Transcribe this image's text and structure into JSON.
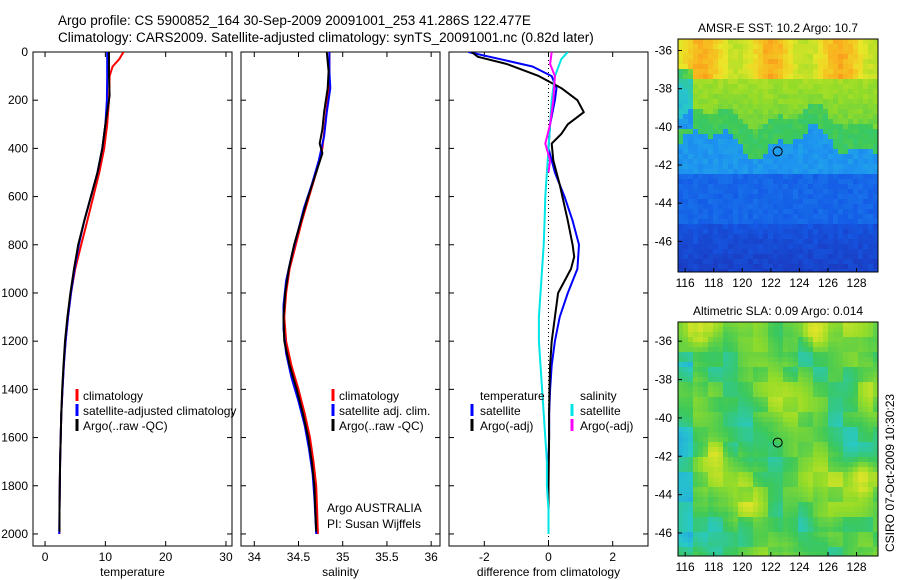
{
  "header": {
    "line1": "Argo profile: CS 5900852_164 30-Sep-2009 20091001_253 41.286S 122.477E",
    "line2": "Climatology: CARS2009. Satellite-adjusted climatology: synTS_20091001.nc (0.82d later)"
  },
  "stamp": "CSIRO 07-Oct-2009 10:30:23",
  "colors": {
    "climatology": "#ff0000",
    "satellite": "#0000ff",
    "argo": "#000000",
    "satellite_salinity": "#00e5e5",
    "argo_salinity": "#ff00ff"
  },
  "chart_data": [
    {
      "type": "line",
      "id": "temperature",
      "title": "",
      "xlabel": "temperature",
      "ylabel": "",
      "xlim": [
        -2,
        31
      ],
      "ylim": [
        2050,
        0
      ],
      "y_reversed": true,
      "xticks": [
        0,
        10,
        20,
        30
      ],
      "yticks": [
        0,
        200,
        400,
        600,
        800,
        1000,
        1200,
        1400,
        1600,
        1800,
        2000
      ],
      "legend": {
        "placement": "lower-right",
        "entries": [
          {
            "label": "climatology",
            "color": "#ff0000"
          },
          {
            "label": "satellite-adjusted climatology",
            "color": "#0000ff"
          },
          {
            "label": "Argo(..raw -QC)",
            "color": "#000000"
          }
        ]
      },
      "series": [
        {
          "color": "#ff0000",
          "points": [
            [
              13,
              0
            ],
            [
              12.3,
              30
            ],
            [
              11.2,
              60
            ],
            [
              10.7,
              100
            ],
            [
              10.6,
              200
            ],
            [
              10.3,
              300
            ],
            [
              9.8,
              400
            ],
            [
              9,
              500
            ],
            [
              8,
              600
            ],
            [
              7,
              700
            ],
            [
              6,
              800
            ],
            [
              5,
              900
            ],
            [
              4.3,
              1000
            ],
            [
              3.8,
              1100
            ],
            [
              3.4,
              1200
            ],
            [
              3.1,
              1300
            ],
            [
              2.9,
              1400
            ],
            [
              2.7,
              1500
            ],
            [
              2.6,
              1600
            ],
            [
              2.5,
              1700
            ],
            [
              2.45,
              1800
            ],
            [
              2.4,
              1900
            ],
            [
              2.4,
              2000
            ]
          ]
        },
        {
          "color": "#0000ff",
          "points": [
            [
              10.3,
              0
            ],
            [
              10.3,
              100
            ],
            [
              10.25,
              200
            ],
            [
              10,
              300
            ],
            [
              9.5,
              400
            ],
            [
              8.7,
              500
            ],
            [
              7.6,
              600
            ],
            [
              6.5,
              700
            ],
            [
              5.6,
              800
            ],
            [
              4.9,
              900
            ],
            [
              4.3,
              1000
            ],
            [
              3.8,
              1100
            ],
            [
              3.4,
              1200
            ],
            [
              3.1,
              1300
            ],
            [
              2.9,
              1400
            ],
            [
              2.7,
              1500
            ],
            [
              2.6,
              1600
            ],
            [
              2.5,
              1700
            ],
            [
              2.45,
              1800
            ],
            [
              2.4,
              1900
            ],
            [
              2.35,
              2000
            ]
          ]
        },
        {
          "color": "#000000",
          "points": [
            [
              10.6,
              0
            ],
            [
              10.6,
              100
            ],
            [
              10.7,
              180
            ],
            [
              10.3,
              250
            ],
            [
              10,
              300
            ],
            [
              9.5,
              400
            ],
            [
              8.7,
              500
            ],
            [
              7.6,
              600
            ],
            [
              6.5,
              700
            ],
            [
              5.5,
              800
            ],
            [
              4.8,
              900
            ],
            [
              4.2,
              1000
            ],
            [
              3.7,
              1100
            ],
            [
              3.3,
              1200
            ],
            [
              3.05,
              1300
            ],
            [
              2.85,
              1400
            ],
            [
              2.7,
              1500
            ],
            [
              2.6,
              1600
            ],
            [
              2.5,
              1700
            ],
            [
              2.45,
              1800
            ],
            [
              2.4,
              1900
            ],
            [
              2.4,
              1990
            ]
          ]
        }
      ]
    },
    {
      "type": "line",
      "id": "salinity",
      "title": "",
      "xlabel": "salinity",
      "ylabel": "",
      "xlim": [
        33.85,
        36.1
      ],
      "ylim": [
        2050,
        0
      ],
      "y_reversed": true,
      "xticks": [
        34,
        34.5,
        35,
        35.5,
        36
      ],
      "legend": {
        "placement": "lower-right",
        "entries": [
          {
            "label": "climatology",
            "color": "#ff0000"
          },
          {
            "label": "satellite adj. clim.",
            "color": "#0000ff"
          },
          {
            "label": "Argo(..raw -QC)",
            "color": "#000000"
          }
        ]
      },
      "annotation": [
        "Argo AUSTRALIA",
        "PI: Susan Wijffels"
      ],
      "series": [
        {
          "color": "#ff0000",
          "points": [
            [
              34.85,
              0
            ],
            [
              34.85,
              100
            ],
            [
              34.83,
              200
            ],
            [
              34.8,
              300
            ],
            [
              34.77,
              400
            ],
            [
              34.7,
              500
            ],
            [
              34.62,
              600
            ],
            [
              34.54,
              700
            ],
            [
              34.47,
              800
            ],
            [
              34.4,
              900
            ],
            [
              34.36,
              1000
            ],
            [
              34.34,
              1100
            ],
            [
              34.36,
              1200
            ],
            [
              34.42,
              1300
            ],
            [
              34.5,
              1400
            ],
            [
              34.57,
              1500
            ],
            [
              34.63,
              1600
            ],
            [
              34.67,
              1700
            ],
            [
              34.7,
              1800
            ],
            [
              34.71,
              1900
            ],
            [
              34.72,
              2000
            ]
          ]
        },
        {
          "color": "#0000ff",
          "points": [
            [
              34.85,
              0
            ],
            [
              34.85,
              80
            ],
            [
              34.86,
              150
            ],
            [
              34.82,
              250
            ],
            [
              34.79,
              350
            ],
            [
              34.73,
              450
            ],
            [
              34.65,
              550
            ],
            [
              34.56,
              650
            ],
            [
              34.49,
              750
            ],
            [
              34.42,
              850
            ],
            [
              34.36,
              950
            ],
            [
              34.33,
              1050
            ],
            [
              34.33,
              1150
            ],
            [
              34.36,
              1250
            ],
            [
              34.42,
              1350
            ],
            [
              34.5,
              1450
            ],
            [
              34.57,
              1550
            ],
            [
              34.62,
              1650
            ],
            [
              34.66,
              1750
            ],
            [
              34.68,
              1850
            ],
            [
              34.7,
              2000
            ]
          ]
        },
        {
          "color": "#000000",
          "points": [
            [
              34.82,
              0
            ],
            [
              34.84,
              80
            ],
            [
              34.83,
              150
            ],
            [
              34.79,
              250
            ],
            [
              34.77,
              320
            ],
            [
              34.74,
              380
            ],
            [
              34.77,
              420
            ],
            [
              34.7,
              500
            ],
            [
              34.61,
              600
            ],
            [
              34.53,
              700
            ],
            [
              34.45,
              800
            ],
            [
              34.39,
              900
            ],
            [
              34.35,
              1000
            ],
            [
              34.33,
              1100
            ],
            [
              34.34,
              1200
            ],
            [
              34.4,
              1300
            ],
            [
              34.48,
              1400
            ],
            [
              34.55,
              1500
            ],
            [
              34.61,
              1600
            ],
            [
              34.65,
              1700
            ],
            [
              34.68,
              1800
            ],
            [
              34.69,
              1900
            ],
            [
              34.7,
              1990
            ]
          ]
        }
      ]
    },
    {
      "type": "line",
      "id": "difference",
      "title": "",
      "xlabel": "difference from climatology",
      "ylabel": "",
      "xlim": [
        -3.1,
        3.1
      ],
      "ylim": [
        2050,
        0
      ],
      "y_reversed": true,
      "xticks": [
        -2,
        0,
        2
      ],
      "zero_line": true,
      "legend": {
        "placement": "lower-center",
        "groups": [
          {
            "heading": "temperature",
            "entries": [
              {
                "label": "satellite",
                "color": "#0000ff"
              },
              {
                "label": "Argo(-adj)",
                "color": "#000000"
              }
            ]
          },
          {
            "heading": "salinity",
            "entries": [
              {
                "label": "satellite",
                "color": "#00e5e5"
              },
              {
                "label": "Argo(-adj)",
                "color": "#ff00ff"
              }
            ]
          }
        ]
      },
      "series": [
        {
          "name": "temperature satellite",
          "color": "#0000ff",
          "points": [
            [
              -2.5,
              0
            ],
            [
              -1.5,
              30
            ],
            [
              -0.5,
              60
            ],
            [
              0.1,
              100
            ],
            [
              0.25,
              150
            ],
            [
              0.2,
              200
            ],
            [
              0.05,
              300
            ],
            [
              0,
              400
            ],
            [
              0.2,
              500
            ],
            [
              0.5,
              600
            ],
            [
              0.75,
              700
            ],
            [
              0.95,
              800
            ],
            [
              0.9,
              900
            ],
            [
              0.6,
              1000
            ],
            [
              0.35,
              1100
            ],
            [
              0.2,
              1200
            ],
            [
              0.1,
              1300
            ],
            [
              0.05,
              1400
            ],
            [
              0.02,
              1500
            ],
            [
              0.02,
              1600
            ],
            [
              0,
              1700
            ],
            [
              0,
              1800
            ],
            [
              0,
              1900
            ],
            [
              0,
              2000
            ]
          ]
        },
        {
          "name": "temperature Argo(-adj)",
          "color": "#000000",
          "points": [
            [
              -2.4,
              0
            ],
            [
              -2.2,
              20
            ],
            [
              -1.3,
              50
            ],
            [
              -0.3,
              100
            ],
            [
              0.4,
              150
            ],
            [
              0.9,
              200
            ],
            [
              1.1,
              250
            ],
            [
              0.6,
              300
            ],
            [
              0.4,
              340
            ],
            [
              0.1,
              380
            ],
            [
              0.15,
              450
            ],
            [
              0.35,
              550
            ],
            [
              0.6,
              700
            ],
            [
              0.75,
              800
            ],
            [
              0.8,
              850
            ],
            [
              0.7,
              900
            ],
            [
              0.3,
              1000
            ],
            [
              0.2,
              1100
            ],
            [
              0.1,
              1200
            ],
            [
              0.05,
              1300
            ],
            [
              0.03,
              1400
            ],
            [
              0.02,
              1500
            ],
            [
              0.02,
              1600
            ],
            [
              0.01,
              1700
            ],
            [
              0,
              1800
            ],
            [
              0,
              1900
            ],
            [
              0,
              2000
            ]
          ]
        },
        {
          "name": "salinity satellite",
          "color": "#00e5e5",
          "points": [
            [
              0.6,
              0
            ],
            [
              0.4,
              30
            ],
            [
              0.2,
              100
            ],
            [
              0.1,
              200
            ],
            [
              0.05,
              300
            ],
            [
              0,
              400
            ],
            [
              -0.05,
              500
            ],
            [
              -0.1,
              600
            ],
            [
              -0.12,
              700
            ],
            [
              -0.15,
              800
            ],
            [
              -0.2,
              900
            ],
            [
              -0.25,
              1000
            ],
            [
              -0.3,
              1100
            ],
            [
              -0.3,
              1200
            ],
            [
              -0.25,
              1300
            ],
            [
              -0.2,
              1400
            ],
            [
              -0.15,
              1500
            ],
            [
              -0.1,
              1600
            ],
            [
              -0.05,
              1700
            ],
            [
              -0.05,
              1800
            ],
            [
              0,
              1900
            ],
            [
              0,
              2000
            ]
          ]
        },
        {
          "name": "salinity Argo(-adj)",
          "color": "#ff00ff",
          "points": [
            [
              0.1,
              0
            ],
            [
              0.05,
              50
            ],
            [
              0.2,
              100
            ],
            [
              0.15,
              200
            ],
            [
              0.05,
              300
            ],
            [
              -0.1,
              380
            ],
            [
              0.05,
              450
            ],
            [
              0,
              500
            ]
          ]
        }
      ]
    },
    {
      "type": "heatmap",
      "id": "sst-map",
      "title": "AMSR-E SST: 10.2 Argo: 10.7",
      "xlim": [
        115.5,
        129.5
      ],
      "ylim": [
        -47.6,
        -35.4
      ],
      "xticks": [
        116,
        118,
        120,
        122,
        124,
        126,
        128
      ],
      "yticks": [
        -36,
        -38,
        -40,
        -42,
        -44,
        -46
      ],
      "marker": {
        "lon": 122.477,
        "lat": -41.286
      }
    },
    {
      "type": "heatmap",
      "id": "sla-map",
      "title": "Altimetric SLA: 0.09 Argo: 0.014",
      "xlim": [
        115.5,
        129.5
      ],
      "ylim": [
        -47.2,
        -35
      ],
      "xticks": [
        116,
        118,
        120,
        122,
        124,
        126,
        128
      ],
      "yticks": [
        -36,
        -38,
        -40,
        -42,
        -44,
        -46
      ],
      "marker": {
        "lon": 122.477,
        "lat": -41.286
      }
    }
  ]
}
